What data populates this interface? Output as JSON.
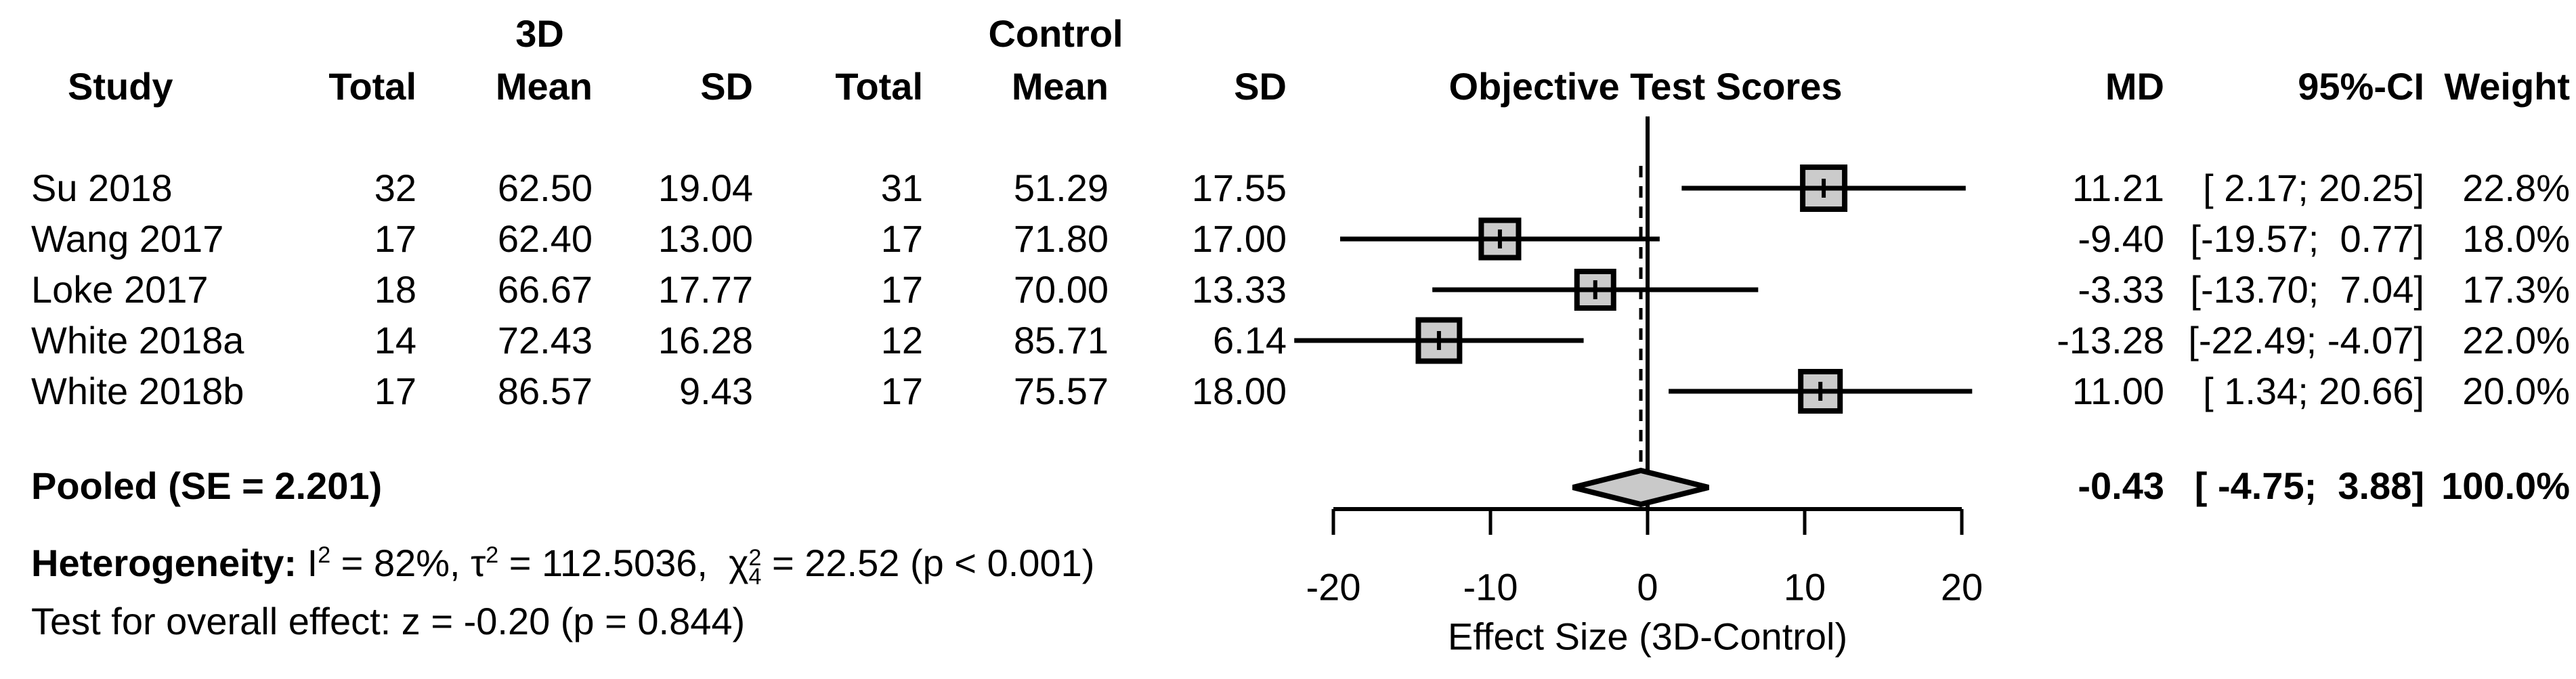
{
  "header": {
    "group_3d": "3D",
    "group_control": "Control",
    "col_study": "Study",
    "col_total": "Total",
    "col_mean": "Mean",
    "col_sd": "SD",
    "col_md": "MD",
    "col_ci": "95%-CI",
    "col_weight": "Weight"
  },
  "chart_data": {
    "type": "forest",
    "title": "Objective Test Scores",
    "xlabel": "Effect Size (3D-Control)",
    "x_ticks": [
      -20,
      -10,
      0,
      10,
      20
    ],
    "x_range": [
      -20,
      20
    ],
    "reference_line": 0,
    "pooled_dashed_line": -0.43,
    "studies": [
      {
        "study": "Su 2018",
        "total_3d": "32",
        "mean_3d": "62.50",
        "sd_3d": "19.04",
        "total_ctrl": "31",
        "mean_ctrl": "51.29",
        "sd_ctrl": "17.55",
        "md": 11.21,
        "ci_low": 2.17,
        "ci_high": 20.25,
        "weight": 22.8,
        "md_text": "11.21",
        "ci_text": "[ 2.17; 20.25]",
        "weight_text": "22.8%"
      },
      {
        "study": "Wang 2017",
        "total_3d": "17",
        "mean_3d": "62.40",
        "sd_3d": "13.00",
        "total_ctrl": "17",
        "mean_ctrl": "71.80",
        "sd_ctrl": "17.00",
        "md": -9.4,
        "ci_low": -19.57,
        "ci_high": 0.77,
        "weight": 18.0,
        "md_text": "-9.40",
        "ci_text": "[-19.57;  0.77]",
        "weight_text": "18.0%"
      },
      {
        "study": "Loke 2017",
        "total_3d": "18",
        "mean_3d": "66.67",
        "sd_3d": "17.77",
        "total_ctrl": "17",
        "mean_ctrl": "70.00",
        "sd_ctrl": "13.33",
        "md": -3.33,
        "ci_low": -13.7,
        "ci_high": 7.04,
        "weight": 17.3,
        "md_text": "-3.33",
        "ci_text": "[-13.70;  7.04]",
        "weight_text": "17.3%"
      },
      {
        "study": "White 2018a",
        "total_3d": "14",
        "mean_3d": "72.43",
        "sd_3d": "16.28",
        "total_ctrl": "12",
        "mean_ctrl": "85.71",
        "sd_ctrl": "6.14",
        "md": -13.28,
        "ci_low": -22.49,
        "ci_high": -4.07,
        "weight": 22.0,
        "md_text": "-13.28",
        "ci_text": "[-22.49; -4.07]",
        "weight_text": "22.0%"
      },
      {
        "study": "White 2018b",
        "total_3d": "17",
        "mean_3d": "86.57",
        "sd_3d": "9.43",
        "total_ctrl": "17",
        "mean_ctrl": "75.57",
        "sd_ctrl": "18.00",
        "md": 11.0,
        "ci_low": 1.34,
        "ci_high": 20.66,
        "weight": 20.0,
        "md_text": "11.00",
        "ci_text": "[ 1.34; 20.66]",
        "weight_text": "20.0%"
      }
    ],
    "pooled": {
      "label": "Pooled (SE = 2.201)",
      "md": -0.43,
      "ci_low": -4.75,
      "ci_high": 3.88,
      "md_text": "-0.43",
      "ci_text": "[ -4.75;  3.88]",
      "weight_text": "100.0%"
    }
  },
  "footer": {
    "heterogeneity_segments": [
      {
        "b": 1,
        "v": "Heterogeneity: "
      },
      {
        "v": "I"
      },
      {
        "s": "sup",
        "v": "2"
      },
      {
        "v": " = 82%, τ"
      },
      {
        "s": "sup",
        "v": "2"
      },
      {
        "v": " = 112.5036,  "
      },
      {
        "s": "chi",
        "v": "χ",
        "sup": "2",
        "sub": "4"
      },
      {
        "v": " = 22.52 (p < 0.001)"
      }
    ],
    "overall_test": "Test for overall effect: z = -0.20 (p = 0.844)"
  },
  "colors": {
    "line": "#000000",
    "marker_fill": "#cbcbcb",
    "marker_border": "#000000",
    "diamond_fill": "#c9c9c9",
    "background": "#ffffff"
  }
}
